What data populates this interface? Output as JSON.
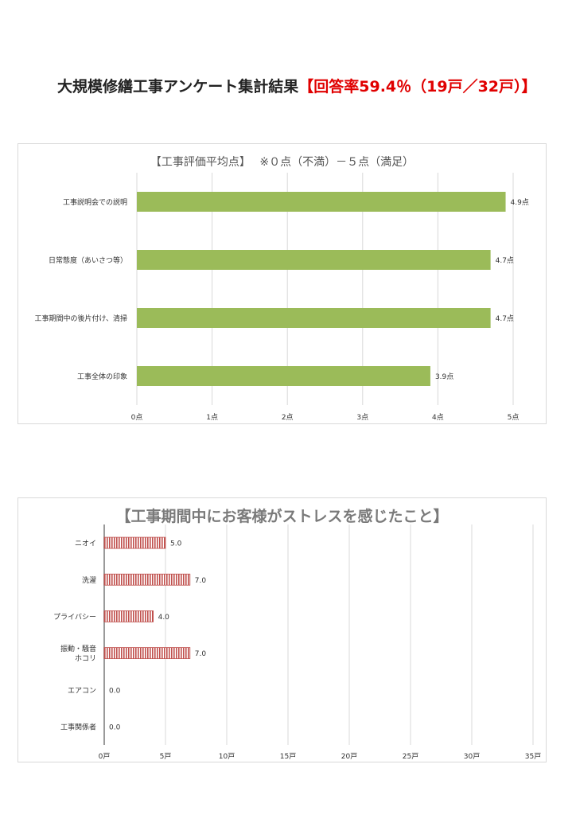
{
  "page": {
    "title_main": "大規模修繕工事アンケート集計結果",
    "title_rate": "【回答率59.4％（19戸／32戸）】"
  },
  "colors": {
    "bar1": "#9bbb59",
    "bar2": "#c0504d",
    "grid": "#d9d9d9",
    "title_rate": "#e00000"
  },
  "chart_data": [
    {
      "type": "bar",
      "orientation": "horizontal",
      "title": "【工事評価平均点】　 ※０点（不満）－５点（満足）",
      "categories": [
        "工事説明会での説明",
        "日常態度（あいさつ等）",
        "工事期間中の後片付け、清掃",
        "工事全体の印象"
      ],
      "values": [
        4.9,
        4.7,
        4.7,
        3.9
      ],
      "data_labels": [
        "4.9点",
        "4.7点",
        "4.7点",
        "3.9点"
      ],
      "xlim": [
        0,
        5
      ],
      "x_ticks": [
        "0点",
        "1点",
        "2点",
        "3点",
        "4点",
        "5点"
      ],
      "grid": true
    },
    {
      "type": "bar",
      "orientation": "horizontal",
      "title": "【工事期間中にお客様がストレスを感じたこと】",
      "categories": [
        "ニオイ",
        "洗濯",
        "プライバシー",
        "振動・騒音\nホコリ",
        "エアコン",
        "工事関係者"
      ],
      "values": [
        5.0,
        7.0,
        4.0,
        7.0,
        0.0,
        0.0
      ],
      "data_labels": [
        "5.0",
        "7.0",
        "4.0",
        "7.0",
        "0.0",
        "0.0"
      ],
      "xlim": [
        0,
        35
      ],
      "x_ticks": [
        "0戸",
        "5戸",
        "10戸",
        "15戸",
        "20戸",
        "25戸",
        "30戸",
        "35戸"
      ],
      "grid": true
    }
  ]
}
